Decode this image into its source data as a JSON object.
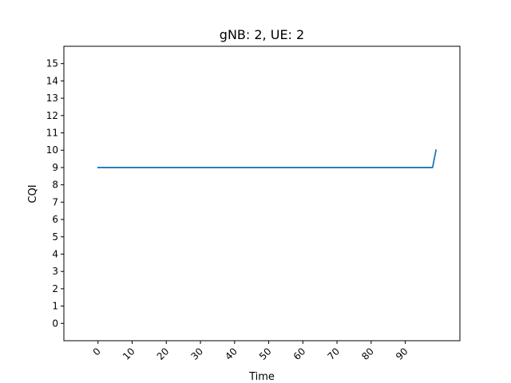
{
  "chart_data": {
    "type": "line",
    "title": "gNB: 2, UE: 2",
    "xlabel": "Time",
    "ylabel": "CQI",
    "xlim": [
      -10,
      106
    ],
    "ylim": [
      -1,
      16
    ],
    "xticks": [
      0,
      10,
      20,
      30,
      40,
      50,
      60,
      70,
      80,
      90
    ],
    "xtick_labels": [
      "0",
      "10",
      "20",
      "30",
      "40",
      "50",
      "60",
      "70",
      "80",
      "90"
    ],
    "yticks": [
      0,
      1,
      2,
      3,
      4,
      5,
      6,
      7,
      8,
      9,
      10,
      11,
      12,
      13,
      14,
      15
    ],
    "ytick_labels": [
      "0",
      "1",
      "2",
      "3",
      "4",
      "5",
      "6",
      "7",
      "8",
      "9",
      "10",
      "11",
      "12",
      "13",
      "14",
      "15"
    ],
    "xtick_rotation_deg": 45,
    "grid": false,
    "legend": "none",
    "series": [
      {
        "color": "#1f77b4",
        "x": [
          0,
          98,
          99
        ],
        "y": [
          9,
          9,
          10
        ]
      }
    ]
  }
}
